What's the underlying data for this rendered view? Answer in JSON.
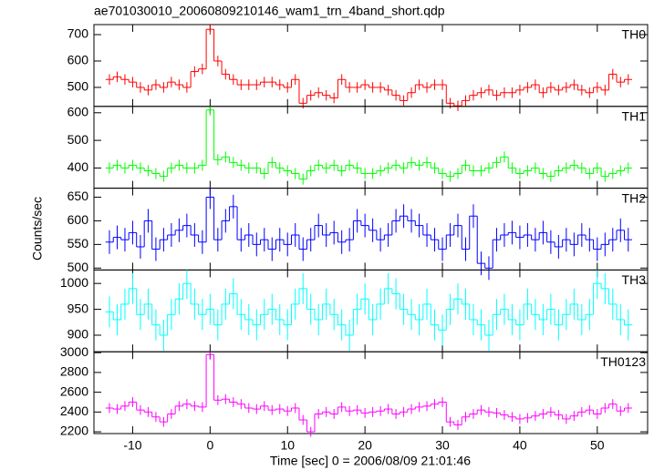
{
  "title": "ae701030010_20060809210146_wam1_trn_4band_short.qdp",
  "xlabel": "Time [sec] 0 = 2006/08/09 21:01:46",
  "ylabel": "Counts/sec",
  "x": [
    -13,
    -12,
    -11,
    -10,
    -9,
    -8,
    -7,
    -6,
    -5,
    -4,
    -3,
    -2,
    -1,
    0,
    1,
    2,
    3,
    4,
    5,
    6,
    7,
    8,
    9,
    10,
    11,
    12,
    13,
    14,
    15,
    16,
    17,
    18,
    19,
    20,
    21,
    22,
    23,
    24,
    25,
    26,
    27,
    28,
    29,
    30,
    31,
    32,
    33,
    34,
    35,
    36,
    37,
    38,
    39,
    40,
    41,
    42,
    43,
    44,
    45,
    46,
    47,
    48,
    49,
    50,
    51,
    52,
    53,
    54
  ],
  "xlim": [
    -15,
    56.5
  ],
  "xticks": [
    -10,
    0,
    10,
    20,
    30,
    40,
    50
  ],
  "chart_data": [
    {
      "type": "step",
      "name": "TH0",
      "color": "#ff0000",
      "ylim": [
        428,
        738
      ],
      "yticks": [
        500,
        600,
        700
      ],
      "error": 20,
      "values": [
        530,
        540,
        530,
        520,
        500,
        490,
        510,
        500,
        520,
        510,
        500,
        560,
        570,
        720,
        600,
        550,
        530,
        510,
        510,
        510,
        520,
        520,
        510,
        500,
        530,
        440,
        470,
        480,
        470,
        460,
        530,
        500,
        500,
        510,
        500,
        500,
        490,
        470,
        450,
        480,
        510,
        500,
        510,
        510,
        440,
        430,
        450,
        470,
        480,
        490,
        470,
        480,
        480,
        490,
        500,
        510,
        480,
        500,
        490,
        500,
        510,
        490,
        480,
        500,
        490,
        550,
        520,
        530
      ]
    },
    {
      "type": "step",
      "name": "TH1",
      "color": "#00ff00",
      "ylim": [
        327,
        623
      ],
      "yticks": [
        400,
        500,
        600
      ],
      "error": 20,
      "values": [
        400,
        410,
        400,
        410,
        400,
        390,
        380,
        370,
        400,
        410,
        400,
        400,
        410,
        610,
        430,
        440,
        420,
        410,
        400,
        400,
        380,
        420,
        400,
        390,
        380,
        360,
        390,
        410,
        400,
        410,
        390,
        410,
        400,
        380,
        380,
        390,
        400,
        410,
        400,
        420,
        410,
        420,
        400,
        380,
        370,
        380,
        410,
        390,
        390,
        400,
        420,
        440,
        400,
        380,
        390,
        400,
        380,
        370,
        390,
        400,
        410,
        400,
        380,
        400,
        370,
        380,
        390,
        400
      ]
    },
    {
      "type": "step",
      "name": "TH2",
      "color": "#0000ff",
      "ylim": [
        496,
        669
      ],
      "yticks": [
        500,
        550,
        600,
        650
      ],
      "error": 25,
      "values": [
        555,
        565,
        560,
        575,
        545,
        600,
        540,
        560,
        570,
        580,
        590,
        570,
        555,
        650,
        560,
        600,
        630,
        560,
        570,
        550,
        560,
        540,
        560,
        550,
        570,
        540,
        560,
        590,
        570,
        575,
        555,
        560,
        600,
        590,
        580,
        560,
        570,
        600,
        610,
        600,
        590,
        570,
        560,
        540,
        570,
        590,
        540,
        610,
        510,
        500,
        560,
        570,
        575,
        565,
        570,
        560,
        575,
        555,
        545,
        560,
        550,
        570,
        560,
        540,
        550,
        560,
        580,
        560
      ]
    },
    {
      "type": "step",
      "name": "TH3",
      "color": "#00ffff",
      "ylim": [
        868,
        1026
      ],
      "yticks": [
        900,
        950,
        1000
      ],
      "error": 30,
      "values": [
        945,
        930,
        960,
        990,
        940,
        960,
        920,
        900,
        940,
        970,
        1000,
        960,
        940,
        950,
        920,
        960,
        980,
        940,
        930,
        920,
        940,
        950,
        930,
        920,
        960,
        990,
        950,
        930,
        960,
        940,
        920,
        900,
        950,
        970,
        930,
        960,
        990,
        980,
        950,
        940,
        930,
        960,
        920,
        910,
        950,
        970,
        960,
        930,
        920,
        900,
        940,
        950,
        930,
        920,
        960,
        940,
        930,
        950,
        920,
        940,
        960,
        930,
        940,
        1000,
        990,
        960,
        930,
        920
      ]
    },
    {
      "type": "step",
      "name": "TH0123",
      "color": "#ff00ff",
      "ylim": [
        2182,
        3009
      ],
      "yticks": [
        2200,
        2400,
        2600,
        2800,
        3000
      ],
      "error": 50,
      "values": [
        2440,
        2430,
        2460,
        2500,
        2420,
        2400,
        2350,
        2300,
        2380,
        2460,
        2480,
        2460,
        2450,
        2980,
        2520,
        2530,
        2500,
        2480,
        2440,
        2430,
        2460,
        2420,
        2430,
        2410,
        2440,
        2320,
        2200,
        2380,
        2400,
        2380,
        2450,
        2410,
        2420,
        2390,
        2400,
        2410,
        2430,
        2380,
        2400,
        2430,
        2450,
        2460,
        2480,
        2500,
        2300,
        2270,
        2350,
        2380,
        2420,
        2400,
        2390,
        2370,
        2350,
        2330,
        2340,
        2360,
        2380,
        2400,
        2370,
        2330,
        2360,
        2400,
        2420,
        2380,
        2440,
        2480,
        2410,
        2440
      ]
    }
  ]
}
